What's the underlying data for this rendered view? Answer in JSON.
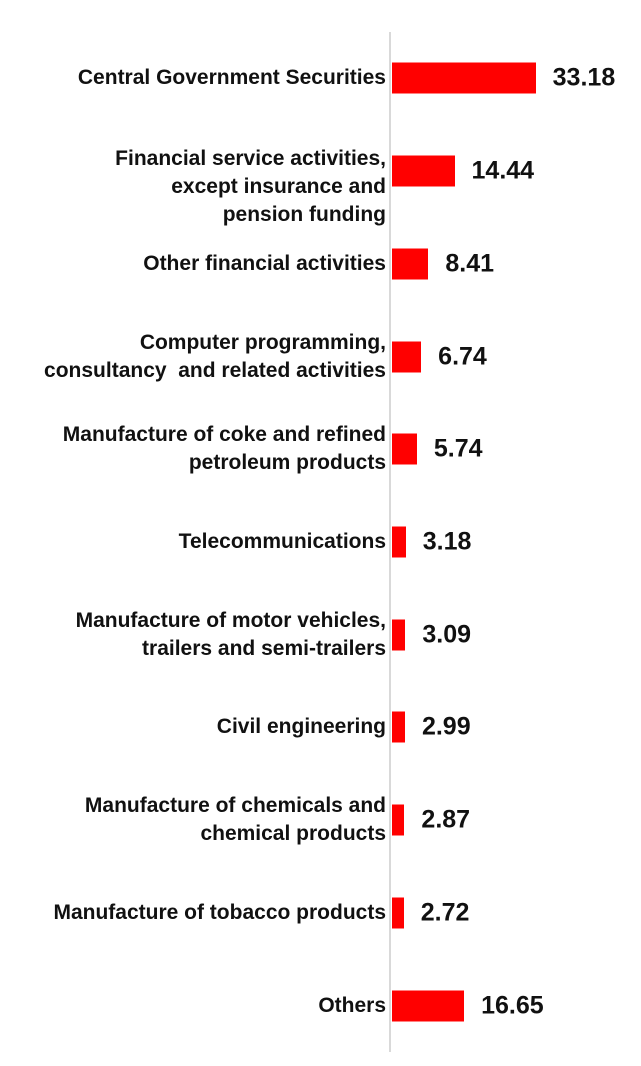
{
  "chart_data": {
    "type": "bar",
    "orientation": "horizontal",
    "title": "",
    "xlabel": "",
    "ylabel": "",
    "categories": [
      "Central Government Securities",
      "Financial service activities,\nexcept insurance and\npension funding",
      "Other financial activities",
      "Computer programming,\nconsultancy  and related activities",
      "Manufacture of coke and refined\npetroleum products",
      "Telecommunications",
      "Manufacture of motor vehicles,\ntrailers and semi-trailers",
      "Civil engineering",
      "Manufacture of chemicals and\nchemical products",
      "Manufacture of tobacco products",
      "Others"
    ],
    "values": [
      33.18,
      14.44,
      8.41,
      6.74,
      5.74,
      3.18,
      3.09,
      2.99,
      2.87,
      2.72,
      16.65
    ],
    "value_labels": [
      "33.18",
      "14.44",
      "8.41",
      "6.74",
      "5.74",
      "3.18",
      "3.09",
      "2.99",
      "2.87",
      "2.72",
      "16.65"
    ],
    "xlim": [
      0,
      36
    ],
    "grid": false,
    "legend": "none",
    "bar_color": "#ff0000",
    "axis_line_color": "#d9d9d9",
    "text_color": "#111111"
  }
}
